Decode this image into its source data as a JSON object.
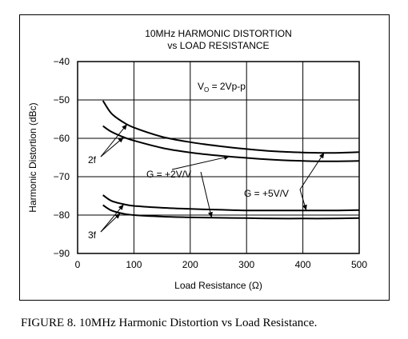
{
  "figure": {
    "caption": "FIGURE 8. 10MHz Harmonic Distortion vs Load Resistance."
  },
  "chart_data": {
    "type": "line",
    "title_line1": "10MHz HARMONIC DISTORTION",
    "title_line2": "vs LOAD RESISTANCE",
    "xlabel": "Load Resistance (Ω)",
    "ylabel": "Harmonic Distortion (dBc)",
    "xlim": [
      0,
      500
    ],
    "ylim": [
      -90,
      -40
    ],
    "xticks": [
      "0",
      "100",
      "200",
      "300",
      "400",
      "500"
    ],
    "yticks": [
      "−40",
      "−50",
      "−60",
      "−70",
      "−80",
      "−90"
    ],
    "grid": true,
    "annotations": {
      "vo": "V",
      "vo_sub": "O",
      "vo_rest": " = 2Vp-p",
      "g2": "G = +2V/V",
      "g5": "G = +5V/V",
      "h2": "2f",
      "h3": "3f"
    },
    "series": [
      {
        "x": [
          45,
          60,
          80,
          100,
          150,
          200,
          250,
          300,
          350,
          400,
          450,
          500
        ],
        "y": [
          -50.2,
          -53.5,
          -55.7,
          -57.2,
          -59.6,
          -61.0,
          -62.0,
          -62.8,
          -63.4,
          -63.7,
          -63.8,
          -63.6
        ]
      },
      {
        "x": [
          45,
          60,
          80,
          100,
          150,
          200,
          250,
          300,
          350,
          400,
          450,
          500
        ],
        "y": [
          -56.8,
          -58.3,
          -59.6,
          -60.6,
          -62.5,
          -63.7,
          -64.5,
          -65.1,
          -65.6,
          -65.9,
          -66.0,
          -65.9
        ]
      },
      {
        "x": [
          45,
          60,
          80,
          100,
          150,
          200,
          250,
          300,
          350,
          400,
          450,
          500
        ],
        "y": [
          -74.8,
          -76.3,
          -77.1,
          -77.6,
          -78.1,
          -78.4,
          -78.6,
          -78.8,
          -78.8,
          -78.8,
          -78.8,
          -78.7
        ]
      },
      {
        "x": [
          45,
          60,
          80,
          100,
          150,
          200,
          250,
          300,
          350,
          400,
          450,
          500
        ],
        "y": [
          -77.4,
          -78.8,
          -79.6,
          -80.0,
          -80.4,
          -80.6,
          -80.7,
          -80.8,
          -80.9,
          -80.9,
          -80.9,
          -80.8
        ]
      }
    ]
  }
}
